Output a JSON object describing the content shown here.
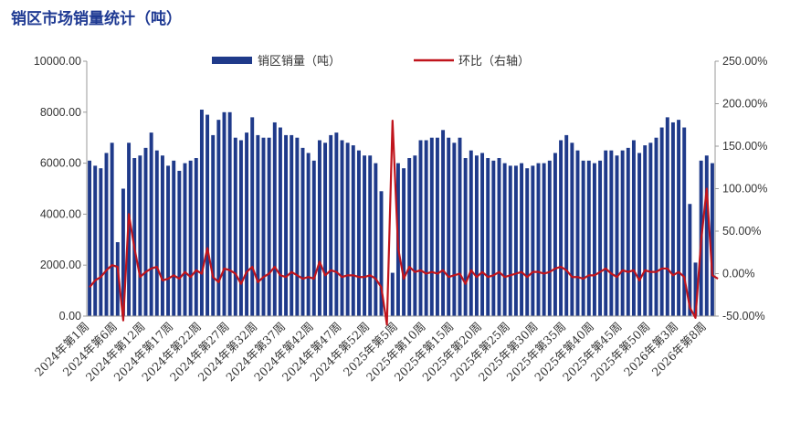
{
  "chart_data": {
    "type": "bar",
    "title": "销区市场销量统计（吨）",
    "colors": {
      "bar": "#1f3a8a",
      "line": "#c0141c",
      "axis": "#999999"
    },
    "legend": {
      "placement": "top-center"
    },
    "grid": false,
    "y_left": {
      "min": 0,
      "max": 10000,
      "ticks": [
        "0.00",
        "2000.00",
        "4000.00",
        "6000.00",
        "8000.00",
        "10000.00"
      ]
    },
    "y_right": {
      "min": -50,
      "max": 250,
      "ticks": [
        "-50.00%",
        "0.00%",
        "50.00%",
        "100.00%",
        "150.00%",
        "200.00%",
        "250.00%"
      ]
    },
    "x_labels": [
      "2024年第1周",
      "2024年第6周",
      "2024年第12周",
      "2024年第17周",
      "2024年第22周",
      "2024年第27周",
      "2024年第32周",
      "2024年第37周",
      "2024年第42周",
      "2024年第47周",
      "2024年第52周",
      "2025年第5周",
      "2025年第10周",
      "2025年第15周",
      "2025年第20周",
      "2025年第25周",
      "2025年第30周",
      "2025年第35周",
      "2025年第40周",
      "2025年第45周",
      "2025年第50周",
      "2026年第3周",
      "2026年第8周"
    ],
    "x_label_every": 5,
    "series": [
      {
        "name": "销区销量（吨）",
        "axis": "left",
        "type": "bar",
        "values": [
          6100,
          5900,
          5800,
          6400,
          6800,
          2900,
          5000,
          6800,
          6200,
          6300,
          6600,
          7200,
          6500,
          6300,
          5900,
          6100,
          5700,
          6000,
          6100,
          6200,
          8100,
          7900,
          7100,
          7700,
          8000,
          8000,
          7000,
          6900,
          7200,
          7800,
          7100,
          7000,
          7000,
          7600,
          7400,
          7100,
          7100,
          7000,
          6600,
          6400,
          6100,
          6900,
          6800,
          7100,
          7200,
          6900,
          6800,
          6700,
          6500,
          6300,
          6300,
          6000,
          4900,
          0,
          1700,
          6000,
          5800,
          6200,
          6300,
          6900,
          6900,
          7000,
          7000,
          7300,
          7000,
          6800,
          7000,
          6200,
          6500,
          6300,
          6400,
          6200,
          6100,
          6200,
          6000,
          5900,
          5900,
          6000,
          5800,
          5900,
          6000,
          6000,
          6100,
          6400,
          6900,
          7100,
          6800,
          6500,
          6100,
          6100,
          6000,
          6100,
          6500,
          6500,
          6300,
          6500,
          6600,
          6900,
          6400,
          6700,
          6800,
          7000,
          7400,
          7800,
          7600,
          7700,
          7400,
          4400,
          2100,
          6100,
          6300,
          6000
        ]
      },
      {
        "name": "环比（右轴）",
        "axis": "right",
        "type": "line",
        "values": [
          -16,
          -8,
          -4,
          4,
          10,
          8,
          -55,
          70,
          30,
          -4,
          2,
          6,
          8,
          -8,
          -6,
          -2,
          -6,
          2,
          -4,
          4,
          0,
          30,
          -4,
          -10,
          6,
          4,
          0,
          -12,
          2,
          8,
          -10,
          -4,
          0,
          8,
          -2,
          -4,
          2,
          -2,
          -6,
          -4,
          -6,
          14,
          -2,
          4,
          2,
          -4,
          -2,
          -2,
          -4,
          -4,
          -2,
          -6,
          -16,
          -60,
          180,
          30,
          -6,
          8,
          2,
          4,
          0,
          2,
          0,
          4,
          -4,
          -2,
          0,
          -12,
          4,
          -4,
          2,
          -4,
          -2,
          2,
          -4,
          -2,
          0,
          2,
          -4,
          2,
          2,
          0,
          2,
          6,
          8,
          4,
          -4,
          -4,
          -6,
          -2,
          -2,
          2,
          6,
          0,
          -4,
          4,
          2,
          4,
          -8,
          4,
          2,
          2,
          6,
          6,
          -2,
          2,
          -4,
          -40,
          -52,
          38,
          100,
          -2,
          -6
        ]
      }
    ]
  }
}
